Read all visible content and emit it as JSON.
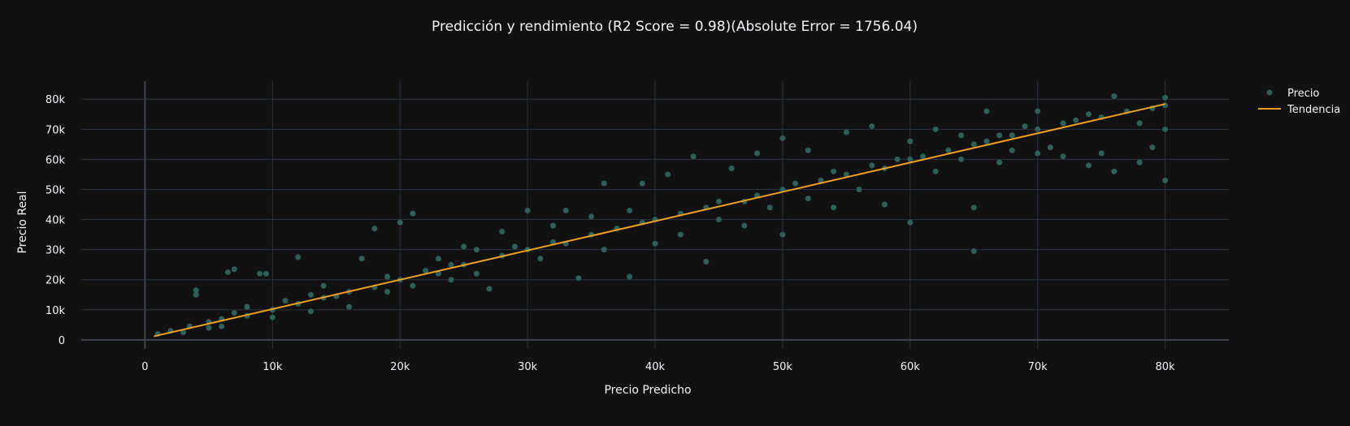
{
  "chart_data": {
    "type": "scatter",
    "title": "Predicción y rendimiento (R2 Score = 0.98)(Absolute Error = 1756.04)",
    "xlabel": "Precio Predicho",
    "ylabel": "Precio Real",
    "xlim": [
      -5000,
      85000
    ],
    "ylim": [
      -3000,
      86000
    ],
    "x_ticks": [
      0,
      10000,
      20000,
      30000,
      40000,
      50000,
      60000,
      70000,
      80000
    ],
    "x_tick_labels": [
      "0",
      "10k",
      "20k",
      "30k",
      "40k",
      "50k",
      "60k",
      "70k",
      "80k"
    ],
    "y_ticks": [
      0,
      10000,
      20000,
      30000,
      40000,
      50000,
      60000,
      70000,
      80000
    ],
    "y_tick_labels": [
      "0",
      "10k",
      "20k",
      "30k",
      "40k",
      "50k",
      "60k",
      "70k",
      "80k"
    ],
    "grid": true,
    "legend_position": "top-right",
    "series": [
      {
        "name": "Precio",
        "kind": "markers",
        "color": "#2f5f5a",
        "points": [
          [
            1000,
            2000
          ],
          [
            2000,
            3000
          ],
          [
            3000,
            2500
          ],
          [
            3500,
            4500
          ],
          [
            4000,
            16500
          ],
          [
            4000,
            15000
          ],
          [
            5000,
            4000
          ],
          [
            5000,
            6000
          ],
          [
            6000,
            7000
          ],
          [
            6000,
            4500
          ],
          [
            6500,
            22500
          ],
          [
            7000,
            23500
          ],
          [
            7000,
            9000
          ],
          [
            8000,
            8000
          ],
          [
            8000,
            11000
          ],
          [
            9000,
            22000
          ],
          [
            9500,
            22000
          ],
          [
            10000,
            10000
          ],
          [
            10000,
            7500
          ],
          [
            11000,
            13000
          ],
          [
            12000,
            12000
          ],
          [
            12000,
            27500
          ],
          [
            13000,
            15000
          ],
          [
            13000,
            9500
          ],
          [
            14000,
            14000
          ],
          [
            14000,
            18000
          ],
          [
            15000,
            14500
          ],
          [
            16000,
            16000
          ],
          [
            16000,
            11000
          ],
          [
            17000,
            27000
          ],
          [
            18000,
            37000
          ],
          [
            18000,
            17500
          ],
          [
            19000,
            21000
          ],
          [
            19000,
            16000
          ],
          [
            20000,
            39000
          ],
          [
            20000,
            20000
          ],
          [
            21000,
            42000
          ],
          [
            21000,
            18000
          ],
          [
            22000,
            23000
          ],
          [
            23000,
            22000
          ],
          [
            23000,
            27000
          ],
          [
            24000,
            25000
          ],
          [
            24000,
            20000
          ],
          [
            25000,
            31000
          ],
          [
            25000,
            25000
          ],
          [
            26000,
            22000
          ],
          [
            26000,
            30000
          ],
          [
            27000,
            17000
          ],
          [
            28000,
            28000
          ],
          [
            28000,
            36000
          ],
          [
            29000,
            31000
          ],
          [
            30000,
            30000
          ],
          [
            30000,
            43000
          ],
          [
            31000,
            27000
          ],
          [
            32000,
            32500
          ],
          [
            32000,
            38000
          ],
          [
            33000,
            32000
          ],
          [
            33000,
            43000
          ],
          [
            34000,
            20500
          ],
          [
            35000,
            35000
          ],
          [
            35000,
            41000
          ],
          [
            36000,
            30000
          ],
          [
            36000,
            52000
          ],
          [
            37000,
            37000
          ],
          [
            38000,
            21000
          ],
          [
            38000,
            43000
          ],
          [
            39000,
            39000
          ],
          [
            39000,
            52000
          ],
          [
            40000,
            40000
          ],
          [
            40000,
            32000
          ],
          [
            41000,
            55000
          ],
          [
            42000,
            42000
          ],
          [
            42000,
            35000
          ],
          [
            43000,
            61000
          ],
          [
            44000,
            44000
          ],
          [
            44000,
            26000
          ],
          [
            45000,
            46000
          ],
          [
            45000,
            40000
          ],
          [
            46000,
            57000
          ],
          [
            47000,
            46000
          ],
          [
            47000,
            38000
          ],
          [
            48000,
            48000
          ],
          [
            48000,
            62000
          ],
          [
            49000,
            44000
          ],
          [
            50000,
            50000
          ],
          [
            50000,
            67000
          ],
          [
            50000,
            35000
          ],
          [
            51000,
            52000
          ],
          [
            52000,
            47000
          ],
          [
            52000,
            63000
          ],
          [
            53000,
            53000
          ],
          [
            54000,
            56000
          ],
          [
            54000,
            44000
          ],
          [
            55000,
            55000
          ],
          [
            55000,
            69000
          ],
          [
            56000,
            50000
          ],
          [
            57000,
            58000
          ],
          [
            57000,
            71000
          ],
          [
            58000,
            57000
          ],
          [
            58000,
            45000
          ],
          [
            59000,
            60000
          ],
          [
            60000,
            60000
          ],
          [
            60000,
            39000
          ],
          [
            60000,
            66000
          ],
          [
            61000,
            61000
          ],
          [
            62000,
            56000
          ],
          [
            62000,
            70000
          ],
          [
            63000,
            63000
          ],
          [
            64000,
            60000
          ],
          [
            64000,
            68000
          ],
          [
            65000,
            65000
          ],
          [
            65000,
            29500
          ],
          [
            65000,
            44000
          ],
          [
            66000,
            66000
          ],
          [
            66000,
            76000
          ],
          [
            67000,
            68000
          ],
          [
            67000,
            59000
          ],
          [
            68000,
            68000
          ],
          [
            68000,
            63000
          ],
          [
            69000,
            71000
          ],
          [
            70000,
            70000
          ],
          [
            70000,
            62000
          ],
          [
            70000,
            76000
          ],
          [
            71000,
            64000
          ],
          [
            72000,
            72000
          ],
          [
            72000,
            61000
          ],
          [
            73000,
            73000
          ],
          [
            74000,
            75000
          ],
          [
            74000,
            58000
          ],
          [
            75000,
            74000
          ],
          [
            75000,
            62000
          ],
          [
            76000,
            81000
          ],
          [
            76000,
            56000
          ],
          [
            77000,
            76000
          ],
          [
            78000,
            59000
          ],
          [
            78000,
            72000
          ],
          [
            79000,
            77000
          ],
          [
            80000,
            78000
          ],
          [
            80000,
            53000
          ],
          [
            80000,
            70000
          ],
          [
            80000,
            80500
          ],
          [
            79000,
            64000
          ]
        ]
      },
      {
        "name": "Tendencia",
        "kind": "line",
        "color": "#f0a020",
        "points": [
          [
            700,
            1200
          ],
          [
            80000,
            78400
          ]
        ]
      }
    ]
  }
}
